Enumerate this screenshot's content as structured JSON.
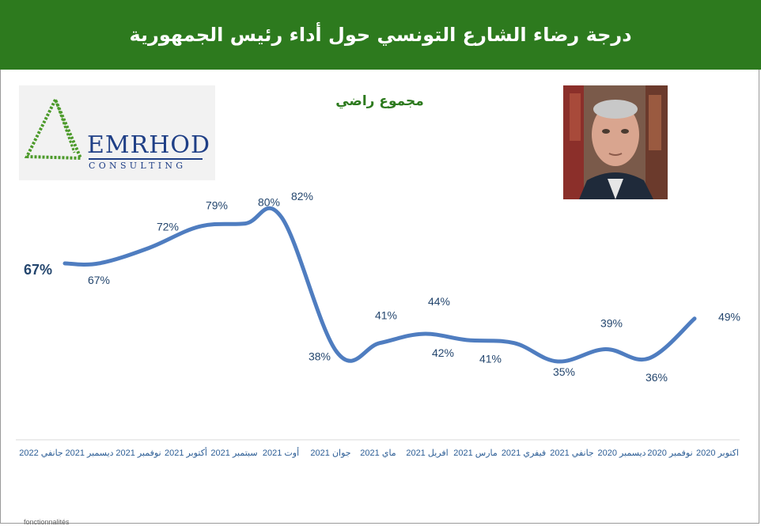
{
  "header": {
    "title": "درجة رضاء الشارع التونسي حول أداء رئيس الجمهورية"
  },
  "logo": {
    "text": "EMRHOD",
    "subtext": "CONSULTING"
  },
  "chart_data": {
    "type": "line",
    "title": "مجموع راضي",
    "categories": [
      "جانفي 2022",
      "ديسمبر 2021",
      "نوفمبر 2021",
      "أكتوبر 2021",
      "سبتمبر 2021",
      "أوت 2021",
      "جوان 2021",
      "ماي 2021",
      "افريل 2021",
      "مارس 2021",
      "فيفري 2021",
      "جانفي 2021",
      "ديسمبر 2020",
      "نوفمبر 2020",
      "اكتوبر 2020"
    ],
    "values": [
      67,
      67,
      72,
      79,
      80,
      82,
      38,
      41,
      44,
      42,
      41,
      35,
      39,
      36,
      49
    ],
    "labels": [
      "67%",
      "67%",
      "72%",
      "79%",
      "80%",
      "82%",
      "38%",
      "41%",
      "44%",
      "42%",
      "41%",
      "35%",
      "39%",
      "36%",
      "49%"
    ],
    "series_color": "#4f7dc0",
    "x_axis_order": "right-to-left (oldest at right)",
    "grid": false
  },
  "footnote": "fonctionnalités"
}
